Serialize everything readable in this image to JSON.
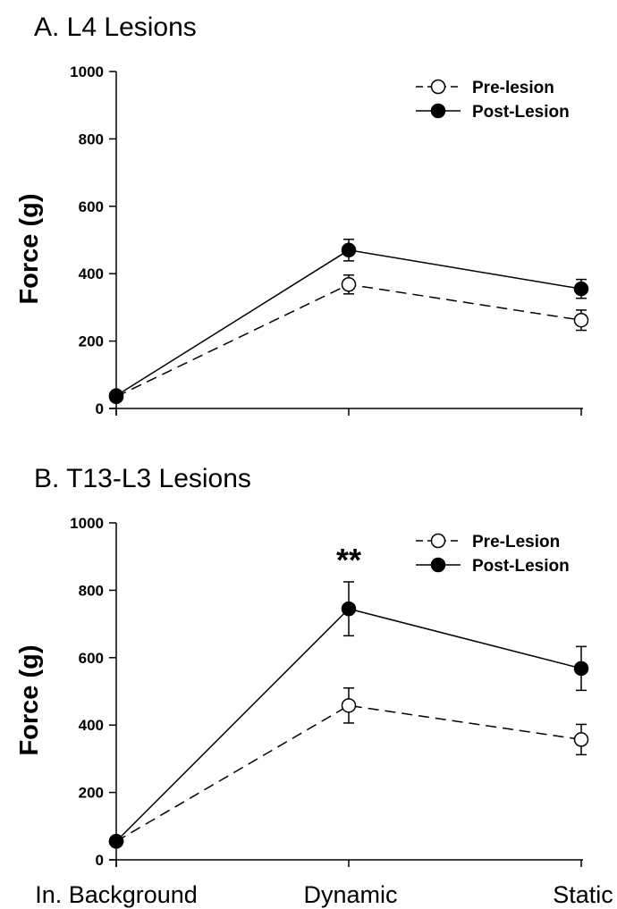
{
  "chart_data": [
    {
      "type": "line",
      "title": "A. L4 Lesions",
      "ylabel": "Force (g)",
      "xlabel": "",
      "ylim": [
        0,
        1000
      ],
      "yticks": [
        0,
        200,
        400,
        600,
        800,
        1000
      ],
      "categories": [
        "In. Background",
        "Dynamic",
        "Static"
      ],
      "legend_position": "top-right",
      "series": [
        {
          "name": "Pre-lesion",
          "style": "dashed",
          "marker": "open-circle",
          "values": [
            35,
            368,
            262
          ],
          "errors": [
            5,
            28,
            30
          ]
        },
        {
          "name": "Post-Lesion",
          "style": "solid",
          "marker": "filled-circle",
          "values": [
            38,
            470,
            355
          ],
          "errors": [
            5,
            32,
            28
          ]
        }
      ],
      "annotations": []
    },
    {
      "type": "line",
      "title": "B. T13-L3 Lesions",
      "ylabel": "Force (g)",
      "xlabel": "",
      "ylim": [
        0,
        1000
      ],
      "yticks": [
        0,
        200,
        400,
        600,
        800,
        1000
      ],
      "categories": [
        "In. Background",
        "Dynamic",
        "Static"
      ],
      "legend_position": "top-right",
      "series": [
        {
          "name": "Pre-Lesion",
          "style": "dashed",
          "marker": "open-circle",
          "values": [
            55,
            458,
            357
          ],
          "errors": [
            5,
            52,
            45
          ]
        },
        {
          "name": "Post-Lesion",
          "style": "solid",
          "marker": "filled-circle",
          "values": [
            55,
            745,
            568
          ],
          "errors": [
            5,
            80,
            65
          ]
        }
      ],
      "annotations": [
        {
          "text": "**",
          "category": "Dynamic"
        }
      ]
    }
  ]
}
